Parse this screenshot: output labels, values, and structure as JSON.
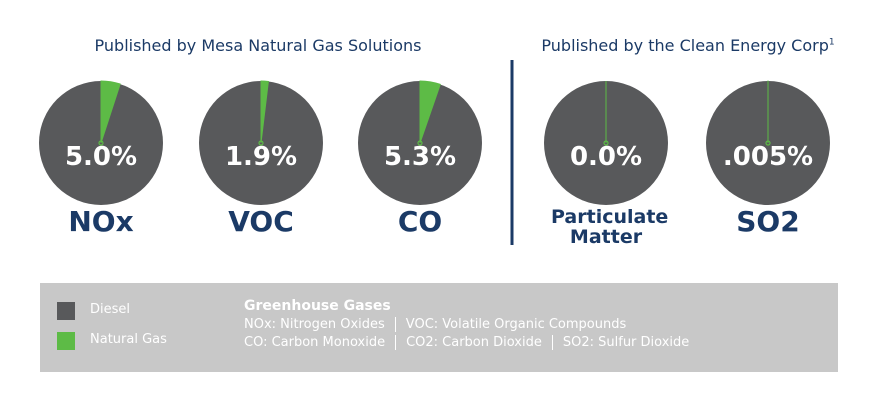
{
  "headings": [
    "Published by Mesa Natural Gas Solutions",
    "Published by the Clean Energy Corp"
  ],
  "footnote": "1",
  "legend": [
    {
      "name": "Diesel",
      "color": "#58595b"
    },
    {
      "name": "Natural Gas",
      "color": "#5dbb46"
    }
  ],
  "notes": {
    "title": "Greenhouse Gases",
    "lines": [
      [
        "NOx: Nitrogen Oxides",
        "VOC: Volatile Organic Compounds"
      ],
      [
        "CO: Carbon Monoxide",
        "CO2: Carbon Dioxide",
        "SO2: Sulfur Dioxide"
      ]
    ]
  },
  "chart_data": [
    {
      "type": "pie",
      "title": "NOx",
      "values": [
        5.0
      ],
      "value_labels": [
        "5.0%"
      ]
    },
    {
      "type": "pie",
      "title": "VOC",
      "values": [
        1.9
      ],
      "value_labels": [
        "1.9%"
      ]
    },
    {
      "type": "pie",
      "title": "CO",
      "values": [
        5.3
      ],
      "value_labels": [
        "5.3%"
      ]
    },
    {
      "type": "pie",
      "title": "Particulate Matter",
      "values": [
        0.0
      ],
      "value_labels": [
        "0.0%"
      ]
    },
    {
      "type": "pie",
      "title": "SO2",
      "values": [
        0.005
      ],
      "value_labels": [
        ".005%"
      ]
    }
  ]
}
